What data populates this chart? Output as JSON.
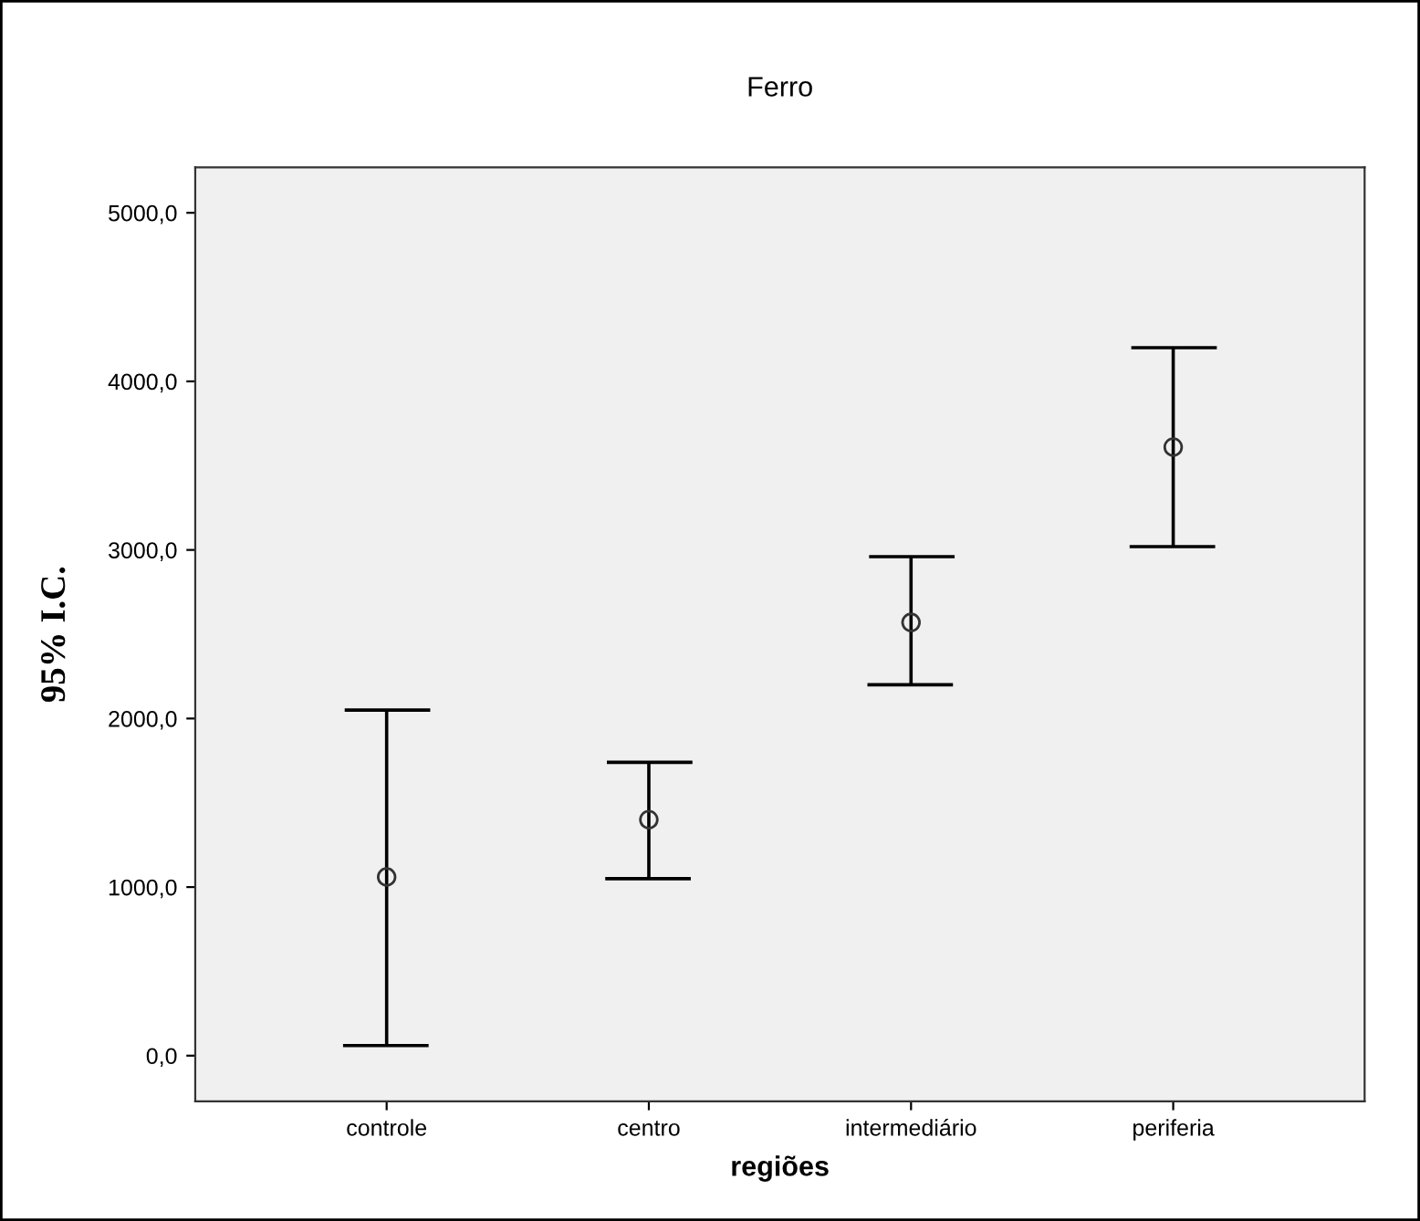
{
  "chart_data": {
    "type": "scatter",
    "title": "Ferro",
    "xlabel": "regiões",
    "ylabel": "95% I.C.",
    "categories": [
      "controle",
      "centro",
      "intermediário",
      "periferia"
    ],
    "values": [
      1060,
      1400,
      2570,
      3610
    ],
    "errors": [
      [
        60,
        2050
      ],
      [
        1050,
        1740
      ],
      [
        2200,
        2960
      ],
      [
        3020,
        4200
      ]
    ],
    "color": "#333333",
    "marker": "circle",
    "ylim": [
      -271,
      5270
    ],
    "yticks": [
      {
        "value": 0,
        "label": "0,0"
      },
      {
        "value": 1000,
        "label": "1000,0"
      },
      {
        "value": 2000,
        "label": "2000,0"
      },
      {
        "value": 3000,
        "label": "3000,0"
      },
      {
        "value": 4000,
        "label": "4000,0"
      },
      {
        "value": 5000,
        "label": "5000,0"
      }
    ],
    "grid": false,
    "legend": false
  }
}
